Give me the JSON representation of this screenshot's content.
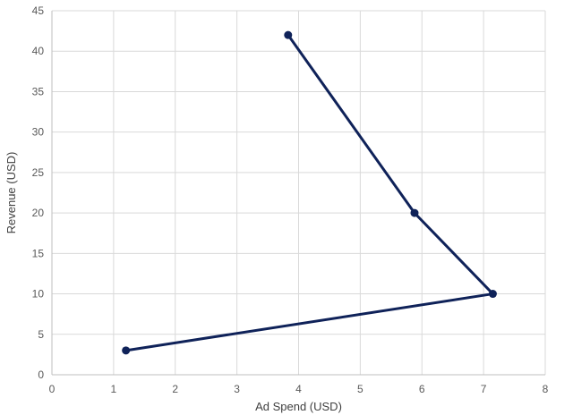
{
  "chart_data": {
    "type": "scatter",
    "title": "",
    "xlabel": "Ad Spend (USD)",
    "ylabel": "Revenue (USD)",
    "xlim": [
      0,
      8
    ],
    "ylim": [
      0,
      45
    ],
    "x_ticks": [
      "0",
      "1",
      "2",
      "3",
      "4",
      "5",
      "6",
      "7",
      "8"
    ],
    "y_ticks": [
      "0",
      "5",
      "10",
      "15",
      "20",
      "25",
      "30",
      "35",
      "40",
      "45"
    ],
    "grid": true,
    "legend": "none",
    "series": [
      {
        "color": "#0f2259",
        "connected": true,
        "points": [
          {
            "x": 1.2,
            "y": 3
          },
          {
            "x": 7.15,
            "y": 10
          },
          {
            "x": 5.88,
            "y": 20
          },
          {
            "x": 3.83,
            "y": 42
          }
        ]
      }
    ]
  }
}
